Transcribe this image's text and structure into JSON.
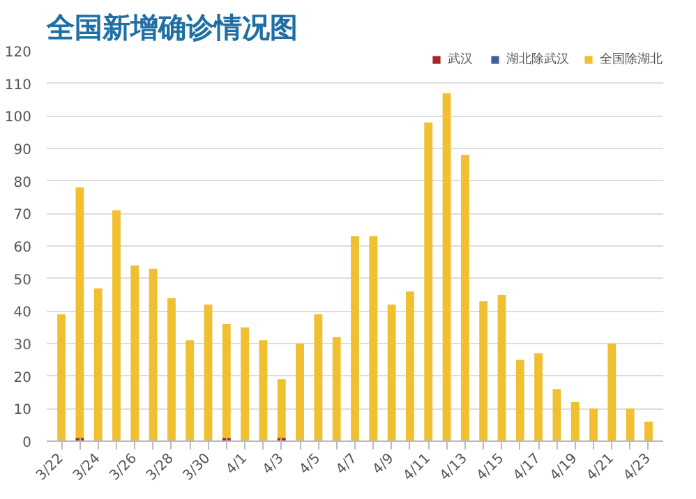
{
  "chart_data": {
    "type": "bar",
    "stacked": true,
    "title": "全国新增确诊情况图",
    "categories": [
      "3/22",
      null,
      "3/24",
      null,
      "3/26",
      null,
      "3/28",
      null,
      "3/30",
      null,
      "4/1",
      null,
      "4/3",
      null,
      "4/5",
      null,
      "4/7",
      null,
      "4/9",
      null,
      "4/11",
      null,
      "4/13",
      null,
      "4/15",
      null,
      "4/17",
      null,
      "4/19",
      null,
      "4/21",
      null,
      "4/23"
    ],
    "series": [
      {
        "name": "武汉",
        "color": "#a5232a",
        "values": [
          0,
          1,
          0,
          0,
          0,
          0,
          0,
          0,
          0,
          1,
          0,
          0,
          1,
          0,
          0,
          0,
          0,
          0,
          0,
          0,
          0,
          0,
          0,
          0,
          0,
          0,
          0,
          0,
          0,
          0,
          0,
          0,
          0
        ]
      },
      {
        "name": "湖北除武汉",
        "color": "#3f5f9f",
        "values": [
          0,
          0,
          0,
          0,
          0,
          0,
          0,
          0,
          0,
          0,
          0,
          0,
          0,
          0,
          0,
          0,
          0,
          0,
          0,
          0,
          0,
          0,
          0,
          0,
          0,
          0,
          0,
          0,
          0,
          0,
          0,
          0,
          0
        ]
      },
      {
        "name": "全国除湖北",
        "color": "#f0c030",
        "values": [
          39,
          77,
          47,
          71,
          54,
          53,
          44,
          31,
          42,
          35,
          35,
          31,
          18,
          30,
          39,
          32,
          63,
          63,
          42,
          46,
          98,
          107,
          88,
          43,
          45,
          25,
          27,
          16,
          12,
          10,
          30,
          10,
          6
        ]
      }
    ],
    "ylim": [
      0,
      120
    ],
    "yticks": [
      0,
      10,
      20,
      30,
      40,
      50,
      60,
      70,
      80,
      90,
      100,
      110,
      120
    ],
    "grid": "y",
    "legend": "top right"
  }
}
